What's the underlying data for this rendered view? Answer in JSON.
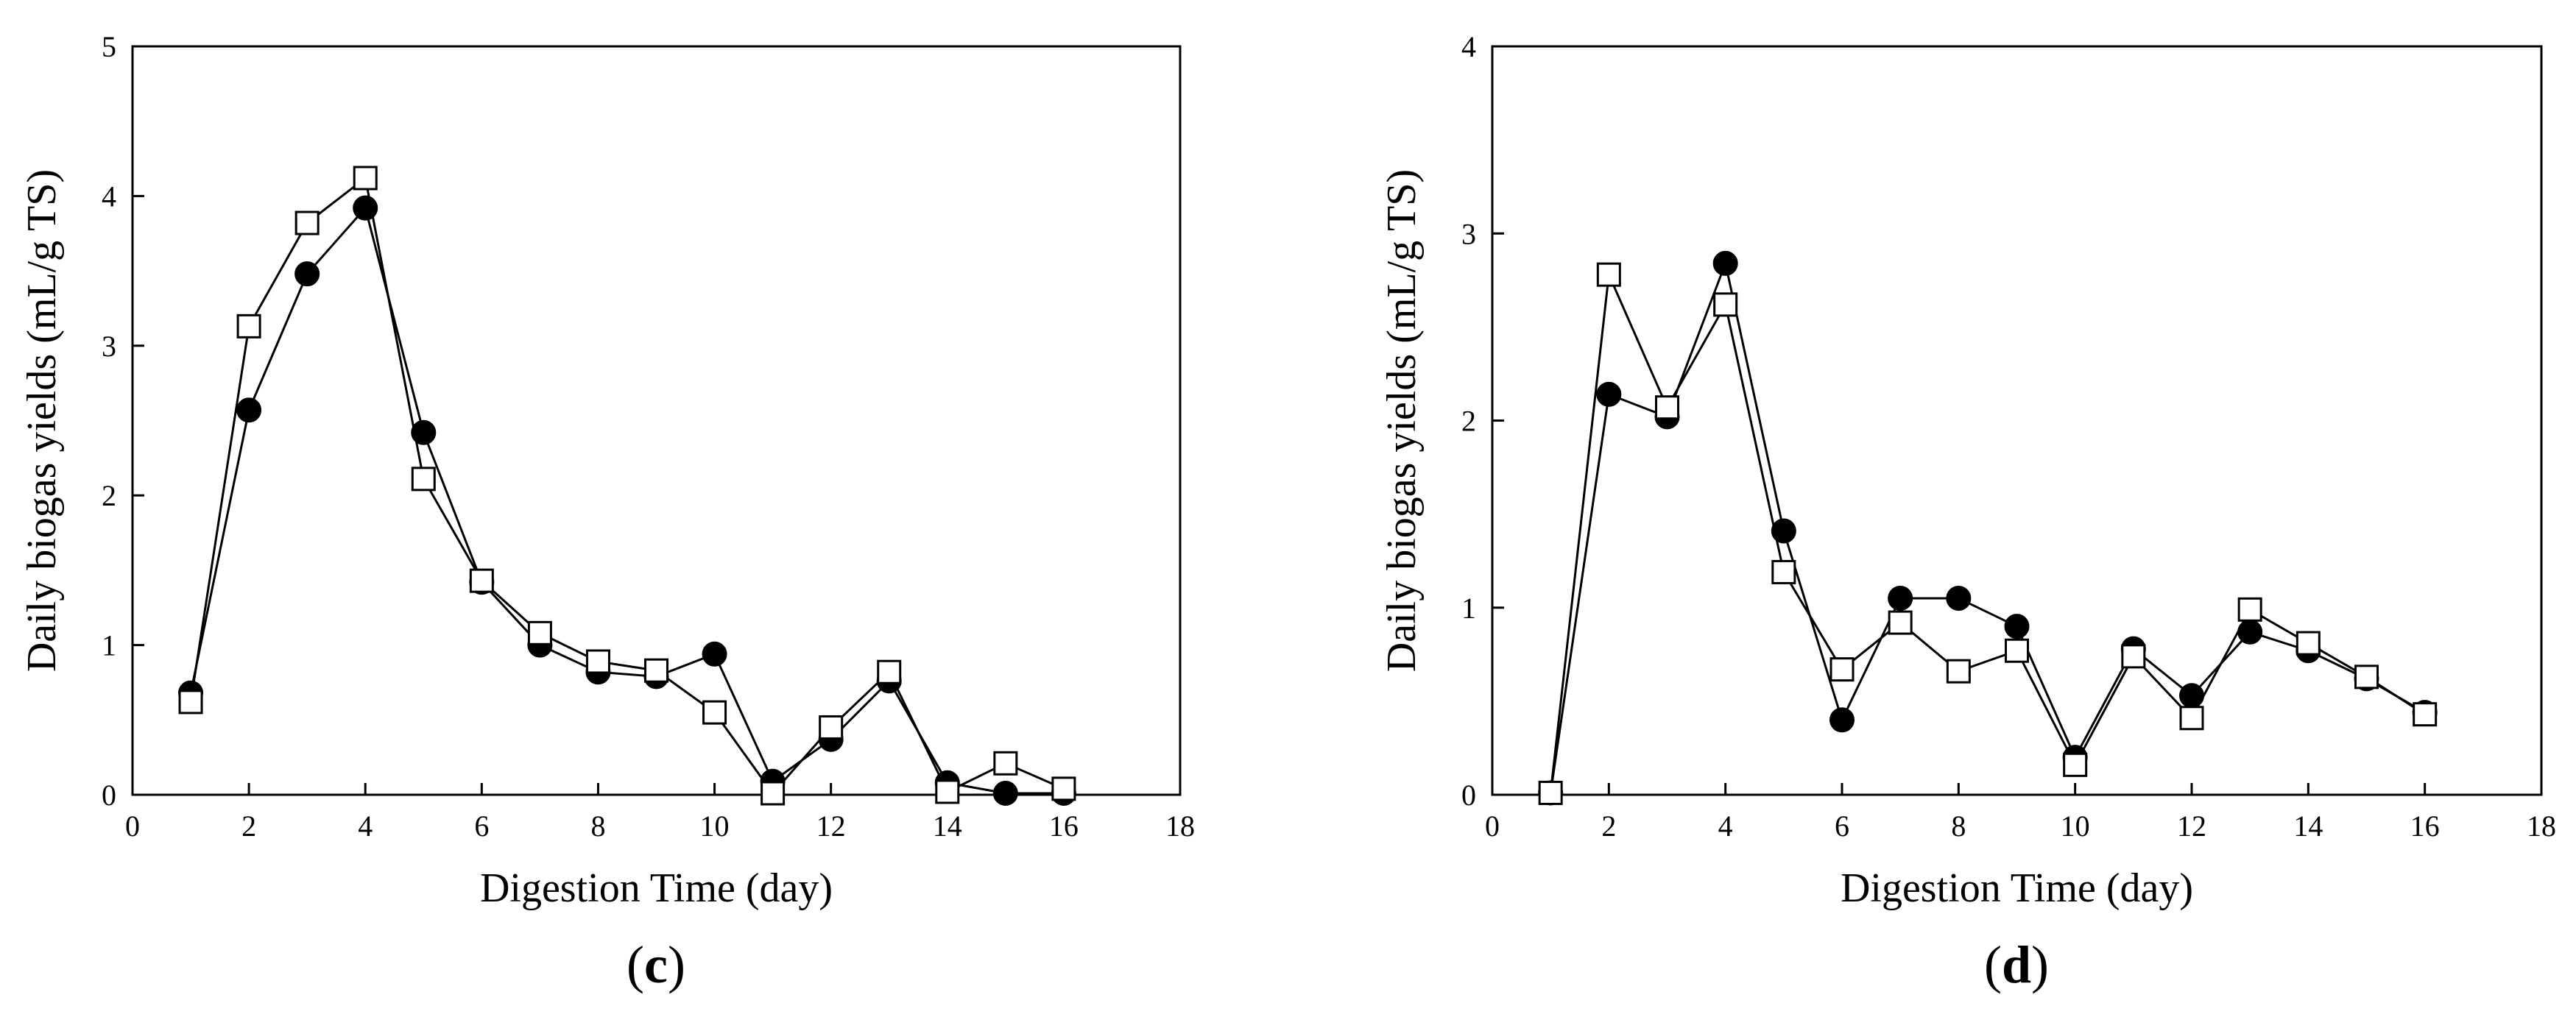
{
  "chart_data": [
    {
      "type": "line",
      "panel": "c",
      "panel_label": {
        "open": "(",
        "letter": "c",
        "close": ")"
      },
      "xlabel": "Digestion Time (day)",
      "ylabel": "Daily biogas yields (mL/g TS)",
      "xlim": [
        0,
        18
      ],
      "ylim": [
        0,
        5
      ],
      "xticks": [
        0,
        2,
        4,
        6,
        8,
        10,
        12,
        14,
        16,
        18
      ],
      "yticks": [
        0,
        1,
        2,
        3,
        4,
        5
      ],
      "series": [
        {
          "name": "filled circle",
          "marker": "circle-filled",
          "x": [
            1,
            2,
            3,
            4,
            5,
            6,
            7,
            8,
            9,
            10,
            11,
            12,
            13,
            14,
            15,
            16
          ],
          "values": [
            0.68,
            2.57,
            3.48,
            3.92,
            2.42,
            1.42,
            1.0,
            0.82,
            0.79,
            0.94,
            0.09,
            0.37,
            0.76,
            0.08,
            0.01,
            0.01
          ]
        },
        {
          "name": "open square",
          "marker": "square-open",
          "x": [
            1,
            2,
            3,
            4,
            5,
            6,
            7,
            8,
            9,
            10,
            11,
            12,
            13,
            14,
            15,
            16
          ],
          "values": [
            0.62,
            3.13,
            3.82,
            4.12,
            2.11,
            1.43,
            1.08,
            0.89,
            0.83,
            0.55,
            0.01,
            0.45,
            0.82,
            0.02,
            0.21,
            0.04
          ]
        }
      ]
    },
    {
      "type": "line",
      "panel": "d",
      "panel_label": {
        "open": "(",
        "letter": "d",
        "close": ")"
      },
      "xlabel": "Digestion Time (day)",
      "ylabel": "Daily biogas yields (mL/g TS)",
      "xlim": [
        0,
        18
      ],
      "ylim": [
        0,
        4
      ],
      "xticks": [
        0,
        2,
        4,
        6,
        8,
        10,
        12,
        14,
        16,
        18
      ],
      "yticks": [
        0,
        1,
        2,
        3,
        4
      ],
      "series": [
        {
          "name": "filled circle",
          "marker": "circle-filled",
          "x": [
            1,
            2,
            3,
            4,
            5,
            6,
            7,
            8,
            9,
            10,
            11,
            12,
            13,
            14,
            15,
            16
          ],
          "values": [
            0.01,
            2.14,
            2.02,
            2.84,
            1.41,
            0.4,
            1.05,
            1.05,
            0.9,
            0.2,
            0.78,
            0.53,
            0.87,
            0.77,
            0.62,
            0.44
          ]
        },
        {
          "name": "open square",
          "marker": "square-open",
          "x": [
            1,
            2,
            3,
            4,
            5,
            6,
            7,
            8,
            9,
            10,
            11,
            12,
            13,
            14,
            15,
            16
          ],
          "values": [
            0.01,
            2.78,
            2.07,
            2.62,
            1.19,
            0.67,
            0.92,
            0.66,
            0.77,
            0.16,
            0.74,
            0.41,
            0.99,
            0.81,
            0.63,
            0.43
          ]
        }
      ]
    }
  ]
}
